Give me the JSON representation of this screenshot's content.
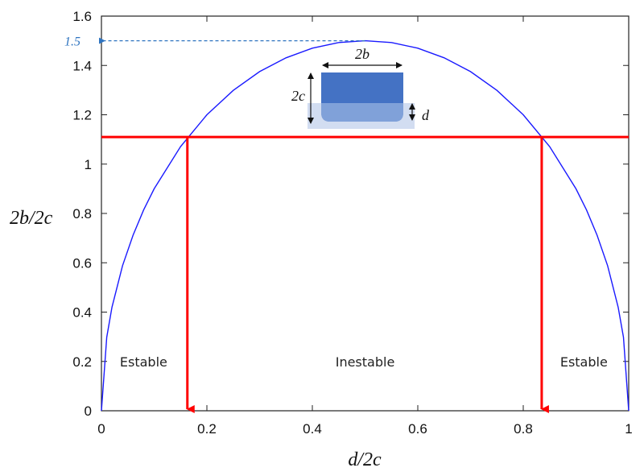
{
  "chart_data": {
    "type": "line",
    "xlabel": "d/2c",
    "ylabel": "2b/2c",
    "xlim": [
      0,
      1
    ],
    "ylim": [
      0,
      1.6
    ],
    "xticks": [
      0,
      0.2,
      0.4,
      0.6,
      0.8,
      1
    ],
    "xtick_labels": [
      "0",
      "0.2",
      "0.4",
      "0.6",
      "0.8",
      "1"
    ],
    "yticks": [
      0,
      0.2,
      0.4,
      0.6,
      0.8,
      1,
      1.2,
      1.4,
      1.6
    ],
    "ytick_labels": [
      "0",
      "0.2",
      "0.4",
      "0.6",
      "0.8",
      "1",
      "1.2",
      "1.4",
      "1.6"
    ],
    "grid": false,
    "series": [
      {
        "color": "#1a1aff",
        "x": [
          0,
          0.01,
          0.02,
          0.04,
          0.06,
          0.08,
          0.1,
          0.15,
          0.2,
          0.25,
          0.3,
          0.35,
          0.4,
          0.45,
          0.5,
          0.55,
          0.6,
          0.65,
          0.7,
          0.75,
          0.8,
          0.85,
          0.9,
          0.92,
          0.94,
          0.96,
          0.98,
          0.99,
          1
        ],
        "y": [
          0,
          0.298,
          0.42,
          0.588,
          0.712,
          0.814,
          0.9,
          1.071,
          1.2,
          1.299,
          1.375,
          1.431,
          1.47,
          1.493,
          1.5,
          1.493,
          1.47,
          1.431,
          1.375,
          1.299,
          1.2,
          1.071,
          0.9,
          0.814,
          0.712,
          0.588,
          0.42,
          0.298,
          0
        ]
      }
    ],
    "threshold_line": {
      "y": 1.11,
      "color": "#ff0000"
    },
    "arrows": [
      {
        "x": 0.163,
        "from_y": 1.11,
        "to_y": 0,
        "color": "#ff0000"
      },
      {
        "x": 0.835,
        "from_y": 1.11,
        "to_y": 0,
        "color": "#ff0000"
      }
    ],
    "max_marker": {
      "x": 0.5,
      "y": 1.5,
      "label": "1.5",
      "color": "#2f74c0"
    },
    "regions": [
      {
        "label": "Estable",
        "x": 0.08,
        "y": 0.2
      },
      {
        "label": "Inestable",
        "x": 0.5,
        "y": 0.2
      },
      {
        "label": "Estable",
        "x": 0.915,
        "y": 0.2
      }
    ],
    "inset": {
      "width_label": "2b",
      "height_label": "2c",
      "depth_label": "d",
      "body_color": "#4472c4",
      "water_color": "#b4c7e7"
    }
  }
}
